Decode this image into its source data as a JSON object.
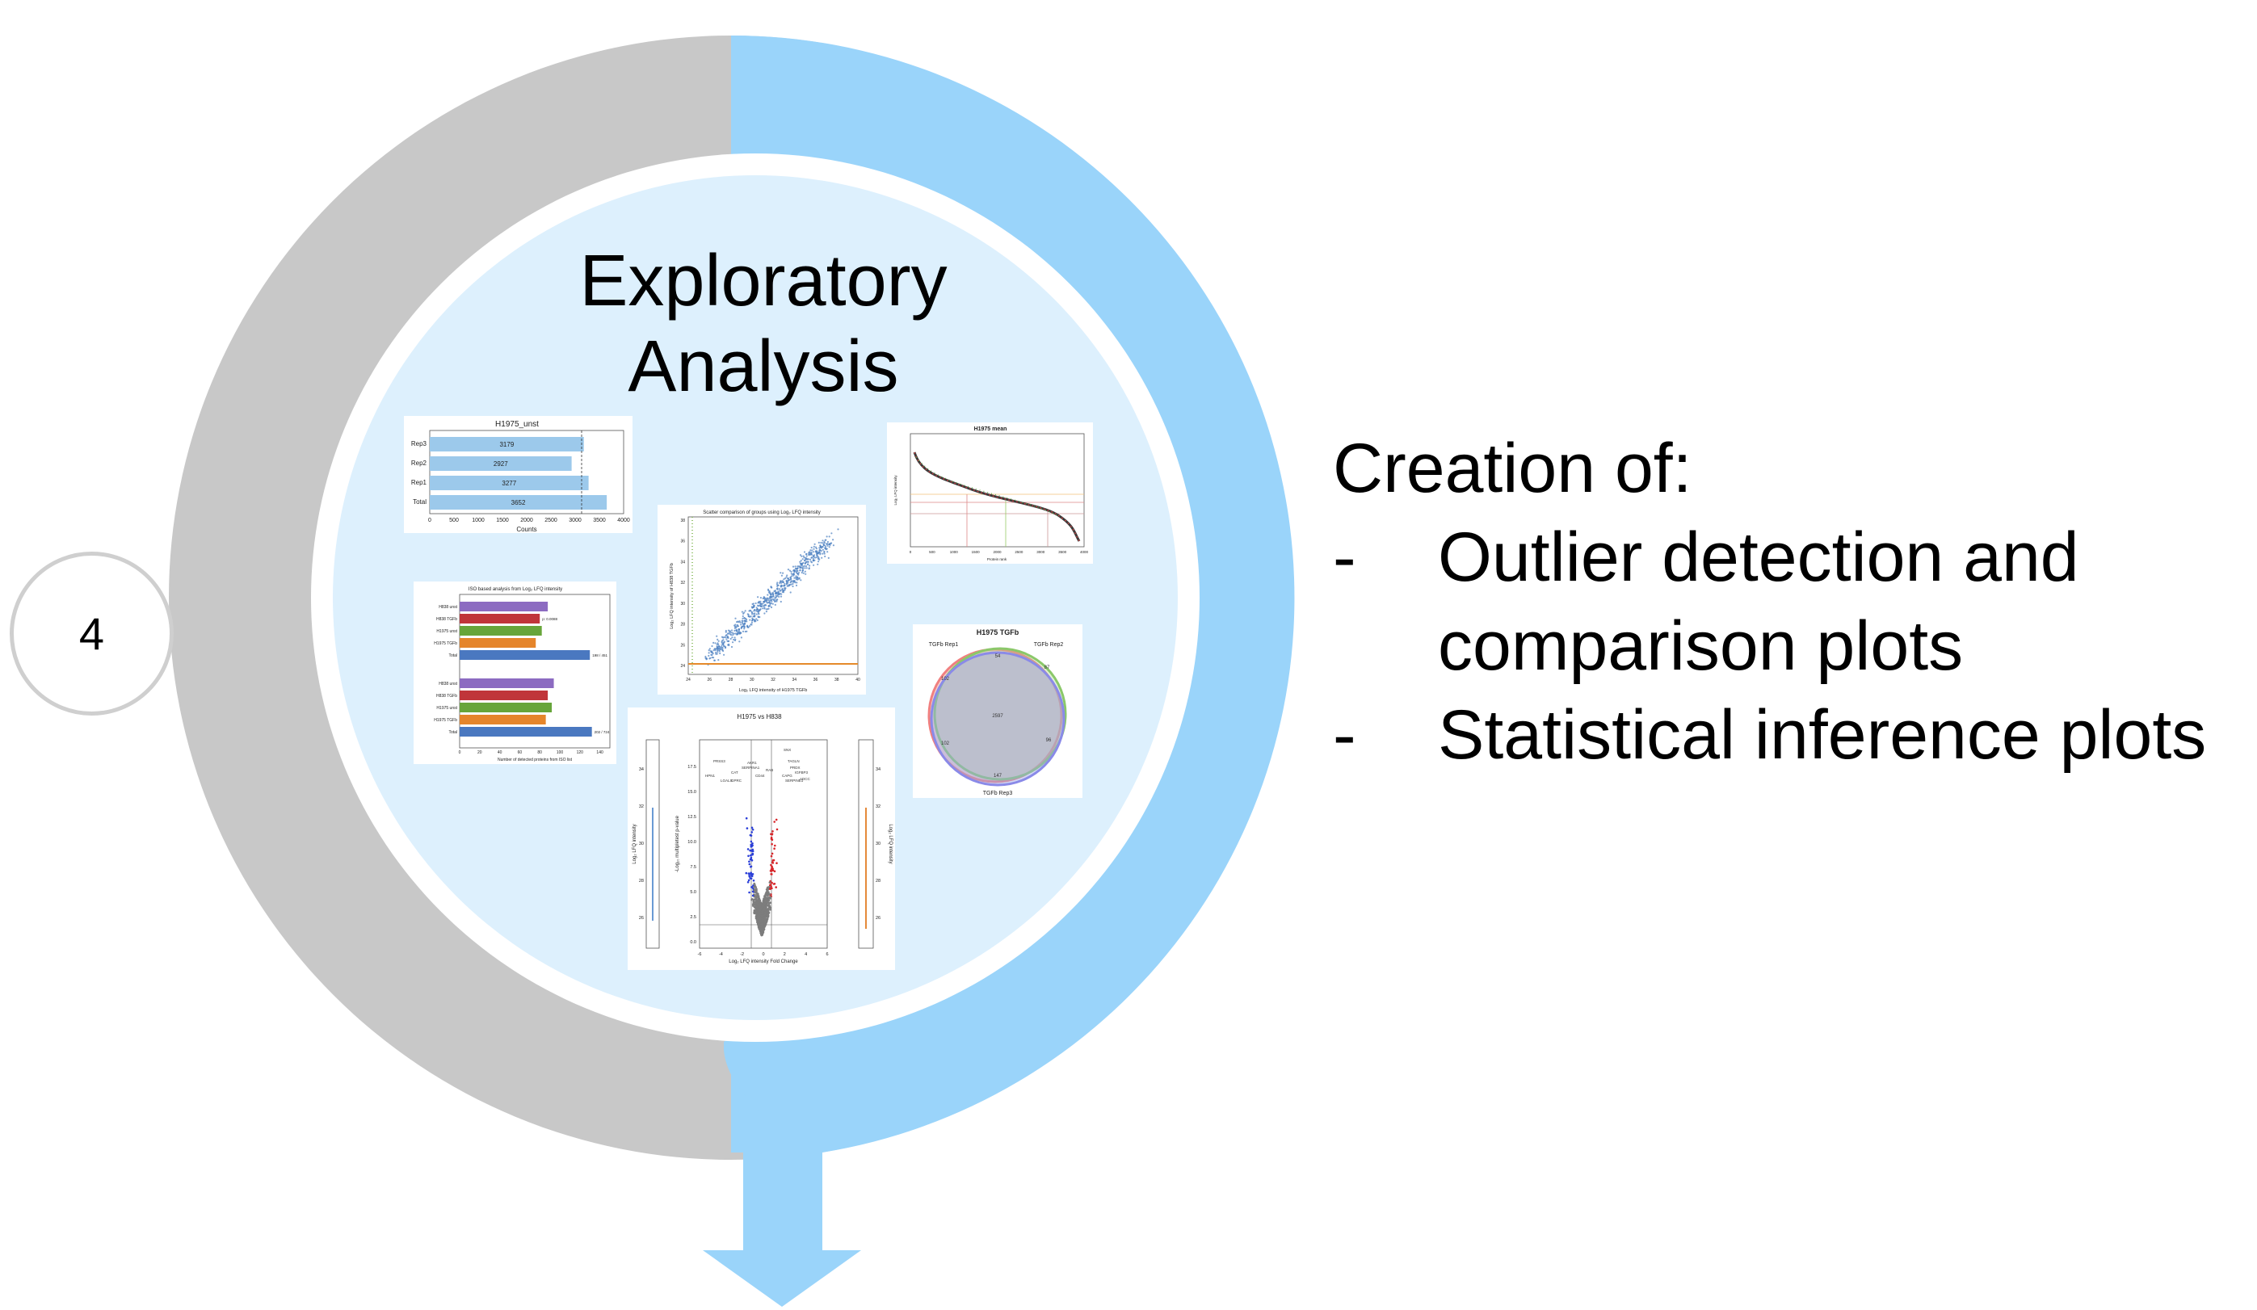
{
  "step_number": "4",
  "title_lines": [
    "Exploratory",
    "Analysis"
  ],
  "description": {
    "heading": "Creation of:",
    "items": [
      {
        "bullet": "-",
        "lines": [
          "Outlier detection and",
          "comparison plots"
        ]
      },
      {
        "bullet": "-",
        "lines": [
          "Statistical inference plots"
        ]
      }
    ]
  },
  "colors": {
    "grey_ring": "#c8c8c8",
    "blue_ring": "#9ad4fa",
    "inner_fill": "#ddf0fd",
    "accent": "#4a7fc1"
  },
  "thumbnails": {
    "bar": {
      "title": "H1975_unst",
      "categories": [
        "Rep3",
        "Rep2",
        "Rep1",
        "Total"
      ],
      "values": [
        3179,
        2927,
        3277,
        3652
      ],
      "ticks": [
        "0",
        "500",
        "1000",
        "1500",
        "2000",
        "2500",
        "3000",
        "3500",
        "4000"
      ],
      "xlabel": "Counts"
    },
    "scatter": {
      "title": "Scatter comparison of groups using Log₂ LFQ intensity",
      "xlabel": "Log₂ LFQ intensity of H1975 TGFb",
      "ylabel": "Log₂ LFQ intensity of H838 TGFb",
      "xticks": [
        "24",
        "26",
        "28",
        "30",
        "32",
        "34",
        "36",
        "38",
        "40"
      ],
      "yticks": [
        "24",
        "26",
        "28",
        "30",
        "32",
        "34",
        "36",
        "38"
      ]
    },
    "rank": {
      "title": "H1975 mean",
      "xlabel": "Protein rank",
      "ylabel": "Log₂ LFQ intensity",
      "xticks": [
        "0",
        "500",
        "1000",
        "1500",
        "2000",
        "2500",
        "3000",
        "3500",
        "4000"
      ]
    },
    "iso": {
      "title": "ISO based analysis from Log₂ LFQ intensity",
      "groups": [
        {
          "labels": [
            "H838 unst",
            "H838 TGFb",
            "H1975 unst",
            "H1975 TGFb",
            "Total"
          ],
          "values": [
            88,
            80,
            82,
            76,
            130
          ],
          "notes": [
            "",
            "p: 0.0088",
            "",
            "",
            "198 / 451"
          ]
        },
        {
          "labels": [
            "H838 unst",
            "H838 TGFb",
            "H1975 unst",
            "H1975 TGFb",
            "Total"
          ],
          "values": [
            94,
            88,
            92,
            86,
            132
          ],
          "notes": [
            "",
            "",
            "",
            "",
            "202 / 724"
          ]
        }
      ],
      "ticks": [
        "0",
        "20",
        "40",
        "60",
        "80",
        "100",
        "120",
        "140"
      ],
      "xlabel": "Number of detected proteins from ISO list"
    },
    "venn": {
      "title": "H1975 TGFb",
      "labels": [
        "TGFb Rep1",
        "TGFb Rep2",
        "TGFb Rep3"
      ],
      "numbers": [
        "54",
        "87",
        "102",
        "2597",
        "96",
        "102",
        "147"
      ]
    },
    "volcano": {
      "title": "H1975 vs H838",
      "xlabel": "Log₂ LFQ intensity Fold Change",
      "ylabel": "-Log₁₀ multipletest p-value",
      "side_ylabel": "Log₂ LFQ intensity",
      "xticks": [
        "-6",
        "-4",
        "-2",
        "0",
        "2",
        "4",
        "6"
      ],
      "yticks": [
        "0.0",
        "2.5",
        "5.0",
        "7.5",
        "10.0",
        "12.5",
        "15.0",
        "17.5"
      ],
      "side_ticks": [
        "26",
        "28",
        "30",
        "32",
        "34"
      ],
      "gene_labels": [
        "PRSS3",
        "HPN1",
        "CAT",
        "SERPINA1",
        "AKR1",
        "LGALS",
        "GPRC",
        "CD44",
        "RAB",
        "SNX",
        "TAGLN",
        "PRDX",
        "IGFBP3",
        "CAPG",
        "SERPINE1",
        "ADCC"
      ]
    }
  }
}
